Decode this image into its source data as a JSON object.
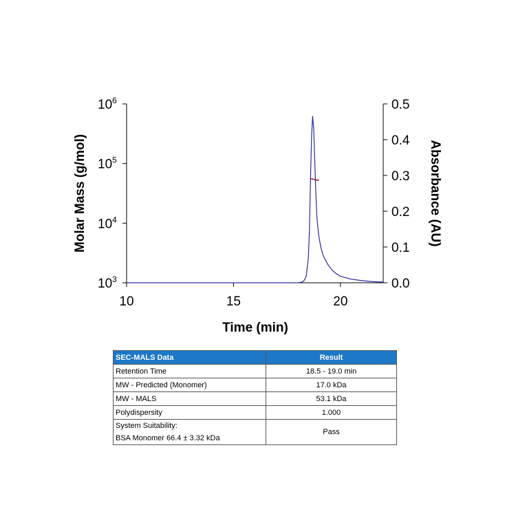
{
  "chart_data": {
    "type": "line",
    "xlabel": "Time (min)",
    "ylabel_left": "Molar Mass (g/mol)",
    "ylabel_right": "Absorbance (AU)",
    "xlim": [
      10,
      22
    ],
    "x_ticks": [
      10,
      15,
      20
    ],
    "y_left_scale": "log",
    "y_left_lim": [
      1000,
      1000000
    ],
    "y_left_ticks": [
      {
        "base": "10",
        "exp": "3",
        "value": 1000
      },
      {
        "base": "10",
        "exp": "4",
        "value": 10000
      },
      {
        "base": "10",
        "exp": "5",
        "value": 100000
      },
      {
        "base": "10",
        "exp": "6",
        "value": 1000000
      }
    ],
    "y_right_lim": [
      0,
      0.5
    ],
    "y_right_ticks": [
      "0.0",
      "0.1",
      "0.2",
      "0.3",
      "0.4",
      "0.5"
    ],
    "grid": false,
    "series": [
      {
        "axis": "right",
        "color": "#2a2a9e",
        "x": [
          10.0,
          17.0,
          18.0,
          18.2,
          18.3,
          18.4,
          18.5,
          18.55,
          18.6,
          18.65,
          18.7,
          18.75,
          18.8,
          18.85,
          18.9,
          18.95,
          19.0,
          19.1,
          19.2,
          19.4,
          19.6,
          19.8,
          20.0,
          20.5,
          21.0,
          21.5,
          22.0
        ],
        "values": [
          0.0,
          0.0,
          0.0,
          0.002,
          0.006,
          0.018,
          0.07,
          0.15,
          0.29,
          0.41,
          0.465,
          0.43,
          0.34,
          0.25,
          0.185,
          0.15,
          0.125,
          0.095,
          0.075,
          0.052,
          0.036,
          0.026,
          0.018,
          0.01,
          0.006,
          0.003,
          0.002
        ]
      },
      {
        "axis": "left",
        "color": "#a02030",
        "x": [
          18.6,
          18.7,
          18.8,
          18.9,
          19.0
        ],
        "values": [
          56000,
          55000,
          53500,
          52500,
          53000
        ]
      }
    ]
  },
  "table": {
    "headers": [
      "SEC-MALS Data",
      "Result"
    ],
    "rows": [
      {
        "label": "Retention Time",
        "value": "18.5 - 19.0 min"
      },
      {
        "label": "MW - Predicted (Monomer)",
        "value": "17.0 kDa"
      },
      {
        "label": "MW - MALS",
        "value": "53.1 kDa"
      },
      {
        "label": "Polydispersity",
        "value": "1.000"
      }
    ],
    "last_row": {
      "label_line1": "System Suitability:",
      "label_line2": "BSA Monomer 66.4 ± 3.32 kDa",
      "value": "Pass"
    }
  }
}
